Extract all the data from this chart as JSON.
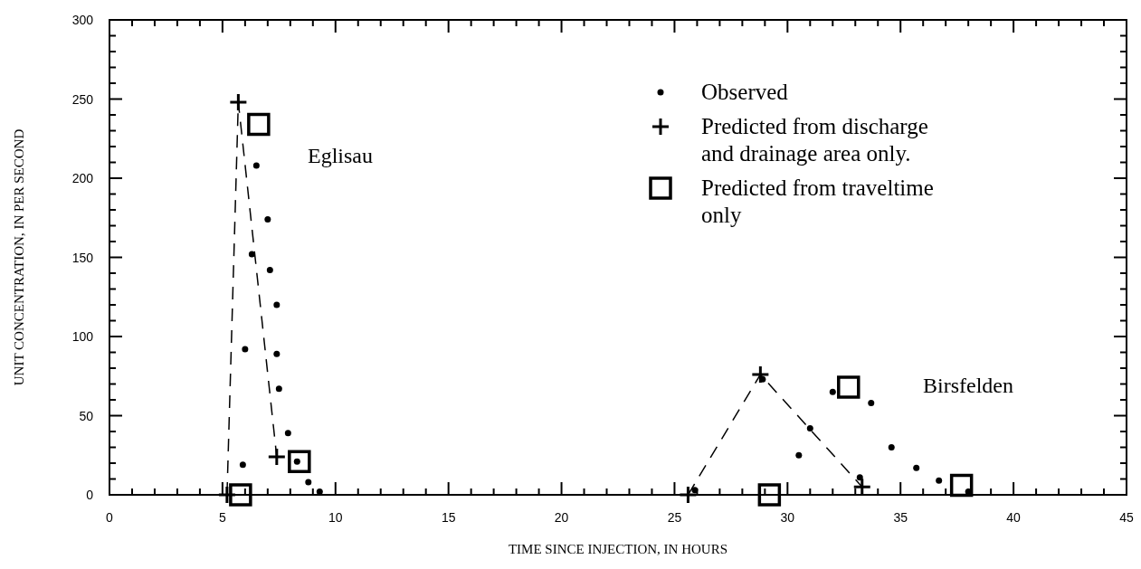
{
  "chart_data": {
    "type": "scatter",
    "xlabel": "TIME SINCE INJECTION, IN HOURS",
    "ylabel": "UNIT CONCENTRATION, IN PER SECOND",
    "xlim": [
      0,
      45
    ],
    "xticks": [
      0,
      5,
      10,
      15,
      20,
      25,
      30,
      35,
      40,
      45
    ],
    "ylim": [
      0,
      300
    ],
    "yticks": [
      0,
      50,
      100,
      150,
      200,
      250,
      300
    ],
    "grid": false,
    "legend": "top right",
    "series": [
      {
        "name": "Observed",
        "marker": "circle",
        "color": "#000000",
        "x": [
          5.9,
          6.0,
          6.3,
          6.5,
          7.0,
          7.1,
          7.4,
          7.4,
          7.5,
          7.9,
          8.3,
          8.8,
          9.3,
          25.9,
          28.9,
          30.5,
          31.0,
          32.0,
          33.2,
          33.7,
          34.6,
          35.7,
          36.7,
          38.0
        ],
        "values": [
          19,
          92,
          152,
          208,
          174,
          142,
          120,
          89,
          67,
          39,
          21,
          8,
          2,
          3,
          73,
          25,
          42,
          65,
          11,
          58,
          30,
          17,
          9,
          2
        ]
      },
      {
        "name": "Predicted from discharge and drainage area only.",
        "type": "line",
        "marker": "cross",
        "line_style": "dashed",
        "color": "#000000",
        "x": [
          5.2,
          5.7,
          7.4,
          16,
          25.6,
          28.8,
          33.3
        ],
        "values": [
          0,
          248,
          24,
          null,
          0,
          76,
          5
        ]
      },
      {
        "name": "Predicted from traveltime only",
        "marker": "square",
        "color": "#000000",
        "x": [
          5.8,
          6.6,
          8.4,
          29.2,
          32.7,
          37.7
        ],
        "values": [
          0,
          234,
          21,
          0,
          68,
          6
        ]
      }
    ],
    "annotations": [
      "Eglisau",
      "Birsfelden"
    ]
  }
}
